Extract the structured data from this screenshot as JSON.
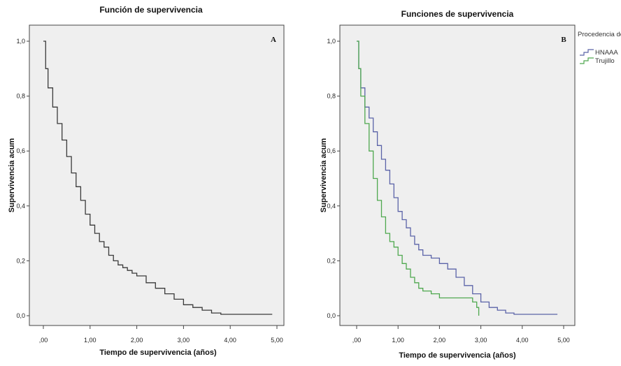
{
  "chart_data": [
    {
      "type": "line",
      "panel_label": "A",
      "title": "Función de supervivencia",
      "xlabel": "Tiempo de supervivencia (años)",
      "ylabel": "Supervivencia acum",
      "xlim": [
        0,
        5
      ],
      "ylim": [
        0,
        1
      ],
      "x_ticks": [
        0,
        1,
        2,
        3,
        4,
        5
      ],
      "x_tick_labels": [
        ",00",
        "1,00",
        "2,00",
        "3,00",
        "4,00",
        "5,00"
      ],
      "y_ticks": [
        0,
        0.2,
        0.4,
        0.6,
        0.8,
        1
      ],
      "y_tick_labels": [
        "0,0",
        "0,2",
        "0,4",
        "0,6",
        "0,8",
        "1,0"
      ],
      "grid": false,
      "series": [
        {
          "color": "#3a3a3a",
          "x": [
            0,
            0.05,
            0.1,
            0.2,
            0.3,
            0.4,
            0.5,
            0.6,
            0.7,
            0.8,
            0.9,
            1.0,
            1.1,
            1.2,
            1.3,
            1.4,
            1.5,
            1.6,
            1.7,
            1.8,
            1.9,
            2.0,
            2.2,
            2.4,
            2.6,
            2.8,
            3.0,
            3.2,
            3.4,
            3.6,
            3.8,
            4.0,
            4.5,
            4.9
          ],
          "y": [
            1.0,
            0.9,
            0.83,
            0.76,
            0.7,
            0.64,
            0.58,
            0.52,
            0.47,
            0.42,
            0.37,
            0.33,
            0.3,
            0.27,
            0.25,
            0.22,
            0.2,
            0.185,
            0.175,
            0.165,
            0.155,
            0.145,
            0.12,
            0.1,
            0.08,
            0.06,
            0.04,
            0.03,
            0.02,
            0.01,
            0.005,
            0.005,
            0.005,
            0.005
          ]
        }
      ]
    },
    {
      "type": "line",
      "panel_label": "B",
      "title": "Funciones de supervivencia",
      "xlabel": "Tiempo de supervivencia (años)",
      "ylabel": "Supervivencia acum",
      "xlim": [
        0,
        5
      ],
      "ylim": [
        0,
        1
      ],
      "x_ticks": [
        0,
        1,
        2,
        3,
        4,
        5
      ],
      "x_tick_labels": [
        ",00",
        "1,00",
        "2,00",
        "3,00",
        "4,00",
        "5,00"
      ],
      "y_ticks": [
        0,
        0.2,
        0.4,
        0.6,
        0.8,
        1
      ],
      "y_tick_labels": [
        "0,0",
        "0,2",
        "0,4",
        "0,6",
        "0,8",
        "1,0"
      ],
      "grid": false,
      "legend_title": "Procedencia del paciente",
      "legend_position": "right",
      "series": [
        {
          "name": "HNAAA",
          "color": "#5b63a8",
          "x": [
            0,
            0.05,
            0.1,
            0.2,
            0.3,
            0.4,
            0.5,
            0.6,
            0.7,
            0.8,
            0.9,
            1.0,
            1.1,
            1.2,
            1.3,
            1.4,
            1.5,
            1.6,
            1.8,
            2.0,
            2.2,
            2.4,
            2.6,
            2.8,
            3.0,
            3.2,
            3.4,
            3.6,
            3.8,
            4.0,
            4.5,
            4.85
          ],
          "y": [
            1.0,
            0.9,
            0.83,
            0.76,
            0.72,
            0.67,
            0.62,
            0.57,
            0.53,
            0.48,
            0.43,
            0.38,
            0.35,
            0.32,
            0.29,
            0.26,
            0.24,
            0.22,
            0.21,
            0.19,
            0.17,
            0.14,
            0.11,
            0.08,
            0.05,
            0.03,
            0.02,
            0.01,
            0.005,
            0.005,
            0.005,
            0.005
          ]
        },
        {
          "name": "Trujillo",
          "color": "#4fa84f",
          "x": [
            0,
            0.05,
            0.1,
            0.2,
            0.3,
            0.4,
            0.5,
            0.6,
            0.7,
            0.8,
            0.9,
            1.0,
            1.1,
            1.2,
            1.3,
            1.4,
            1.5,
            1.6,
            1.8,
            2.0,
            2.2,
            2.4,
            2.6,
            2.8,
            2.9,
            2.95
          ],
          "y": [
            1.0,
            0.9,
            0.8,
            0.7,
            0.6,
            0.5,
            0.42,
            0.36,
            0.3,
            0.27,
            0.25,
            0.22,
            0.19,
            0.17,
            0.14,
            0.12,
            0.1,
            0.09,
            0.08,
            0.065,
            0.065,
            0.065,
            0.065,
            0.05,
            0.03,
            0.0
          ]
        }
      ]
    }
  ]
}
